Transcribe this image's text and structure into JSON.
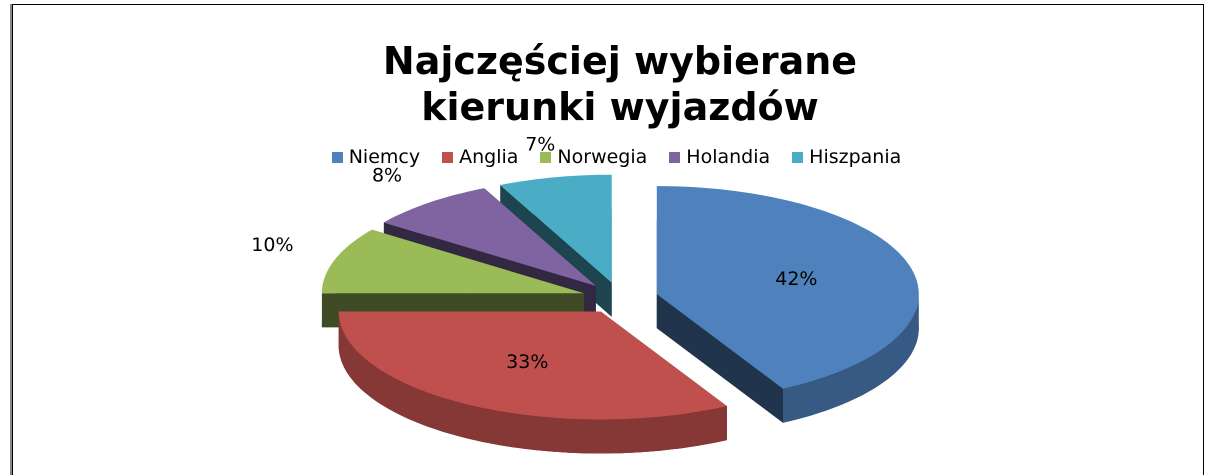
{
  "chart_data": {
    "type": "pie3d",
    "title": "Najczęściej wybierane kierunki wyjazdów",
    "categories": [
      "Niemcy",
      "Anglia",
      "Norwegia",
      "Holandia",
      "Hiszpania"
    ],
    "values": [
      42,
      33,
      10,
      8,
      7
    ],
    "value_labels": [
      "42%",
      "33%",
      "10%",
      "8%",
      "7%"
    ],
    "colors": [
      "#4f81bd",
      "#c0504d",
      "#9bbb59",
      "#8064a2",
      "#4bacc6"
    ],
    "legend": "top"
  }
}
